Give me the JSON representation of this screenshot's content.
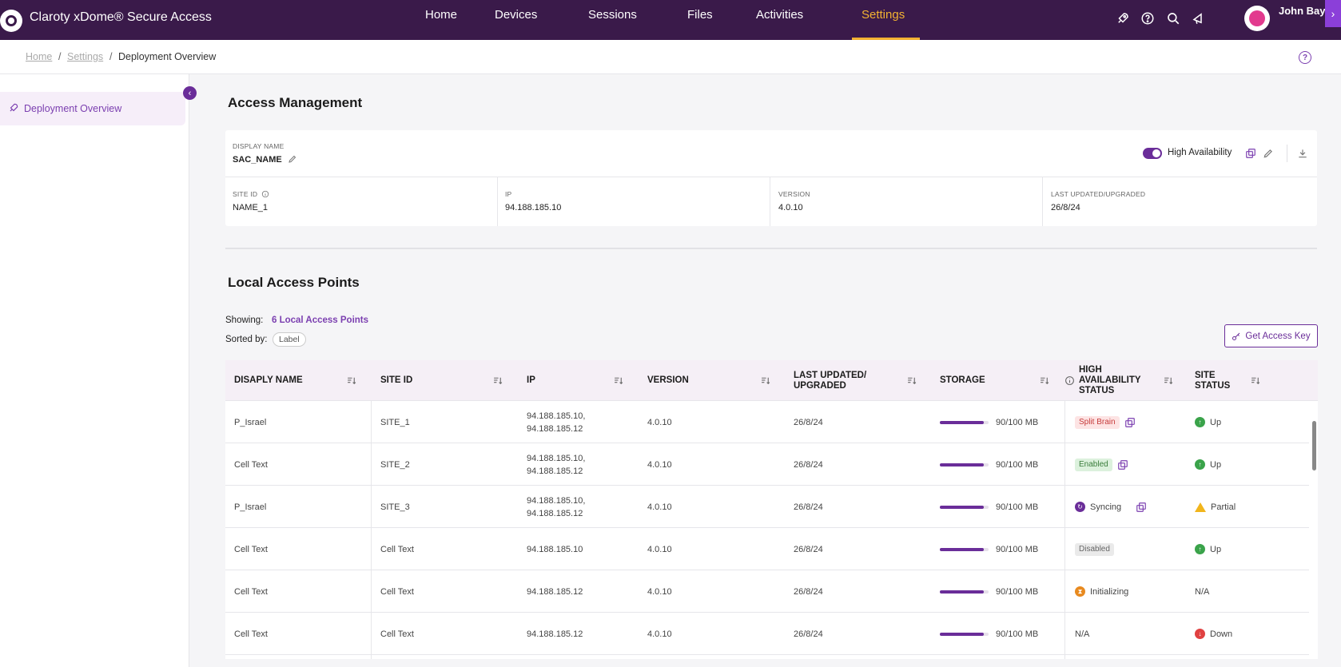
{
  "app": {
    "title": "Claroty xDome® Secure Access"
  },
  "nav": {
    "items": [
      "Home",
      "Devices",
      "Sessions",
      "Files",
      "Activities",
      "Settings"
    ],
    "active": "Settings"
  },
  "user": {
    "name": "John Bay"
  },
  "breadcrumb": {
    "home": "Home",
    "settings": "Settings",
    "current": "Deployment Overview"
  },
  "sidebar": {
    "item": "Deployment Overview"
  },
  "access": {
    "title": "Access Management",
    "display_name_label": "DISPLAY NAME",
    "display_name": "SAC_NAME",
    "high_availability_label": "High Availability",
    "site_id_label": "SITE ID",
    "site_id": "NAME_1",
    "ip_label": "IP",
    "ip": "94.188.185.10",
    "version_label": "VERSION",
    "version": "4.0.10",
    "last_updated_label": "LAST UPDATED/UPGRADED",
    "last_updated": "26/8/24"
  },
  "lap": {
    "title": "Local Access Points",
    "showing_label": "Showing:",
    "showing_value": "6 Local Access Points",
    "sorted_label": "Sorted by:",
    "sorted_value": "Label",
    "key_button": "Get Access Key"
  },
  "table": {
    "headers": [
      "DISAPLY NAME",
      "SITE ID",
      "IP",
      "VERSION",
      "LAST UPDATED/ UPGRADED",
      "STORAGE",
      "HIGH AVAILABILITY STATUS",
      "SITE STATUS"
    ],
    "rows": [
      {
        "name": "P_Israel",
        "site": "SITE_1",
        "ip1": "94.188.185.10,",
        "ip2": "94.188.185.12",
        "version": "4.0.10",
        "updated": "26/8/24",
        "storage": "90/100 MB",
        "storage_pct": 0.9,
        "ha": "Split Brain",
        "site_status": "Up"
      },
      {
        "name": "Cell Text",
        "site": "SITE_2",
        "ip1": "94.188.185.10,",
        "ip2": "94.188.185.12",
        "version": "4.0.10",
        "updated": "26/8/24",
        "storage": "90/100 MB",
        "storage_pct": 0.9,
        "ha": "Enabled",
        "site_status": "Up"
      },
      {
        "name": "P_Israel",
        "site": "SITE_3",
        "ip1": "94.188.185.10,",
        "ip2": "94.188.185.12",
        "version": "4.0.10",
        "updated": "26/8/24",
        "storage": "90/100 MB",
        "storage_pct": 0.9,
        "ha": "Syncing",
        "site_status": "Partial"
      },
      {
        "name": "Cell Text",
        "site": "Cell Text",
        "ip1": "94.188.185.10",
        "ip2": "",
        "version": "4.0.10",
        "updated": "26/8/24",
        "storage": "90/100 MB",
        "storage_pct": 0.9,
        "ha": "Disabled",
        "site_status": "Up"
      },
      {
        "name": "Cell Text",
        "site": "Cell Text",
        "ip1": "94.188.185.12",
        "ip2": "",
        "version": "4.0.10",
        "updated": "26/8/24",
        "storage": "90/100 MB",
        "storage_pct": 0.9,
        "ha": "Initializing",
        "site_status": "N/A"
      },
      {
        "name": "Cell Text",
        "site": "Cell Text",
        "ip1": "94.188.185.12",
        "ip2": "",
        "version": "4.0.10",
        "updated": "26/8/24",
        "storage": "90/100 MB",
        "storage_pct": 0.9,
        "ha": "N/A",
        "site_status": "Down"
      }
    ]
  },
  "colors": {
    "header_bg": "#3a1a4a",
    "accent": "#6a2d99",
    "active_nav": "#f2b232"
  }
}
